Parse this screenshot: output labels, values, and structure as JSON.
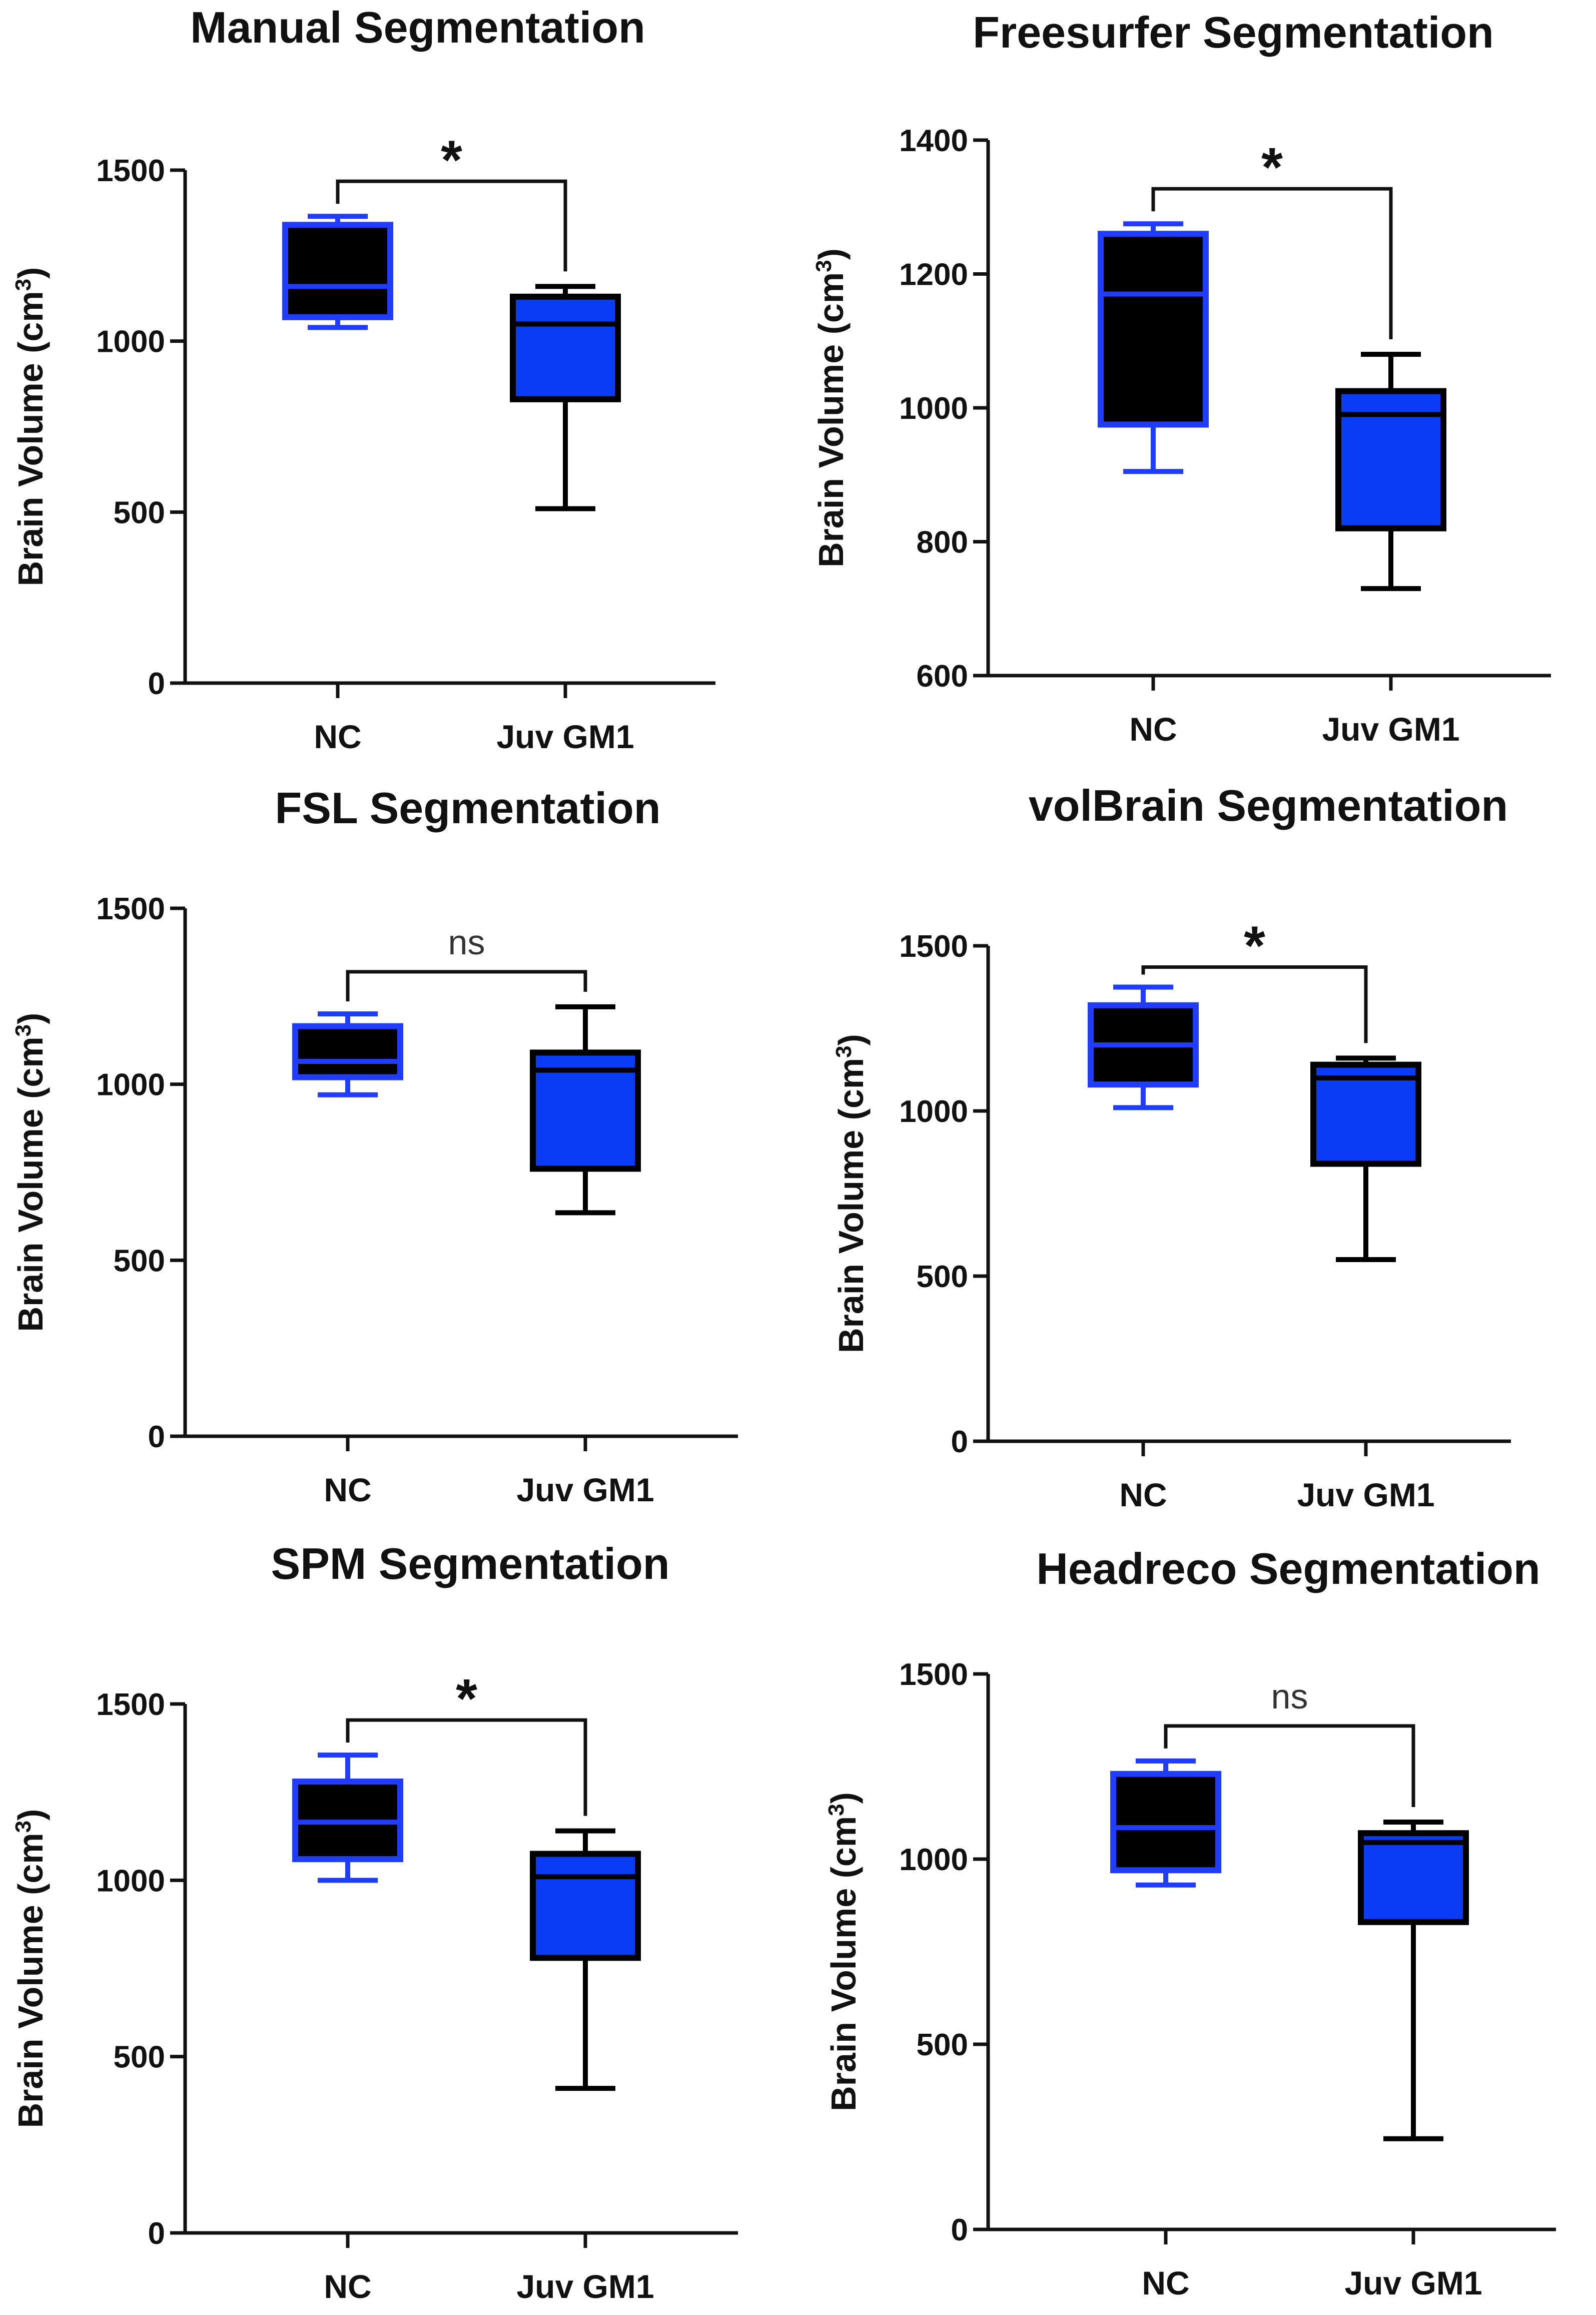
{
  "figure": {
    "colors": {
      "nc_fill": "#000000",
      "nc_stroke": "#1f3cff",
      "gm1_fill": "#0a3cf5",
      "gm1_stroke": "#000000",
      "axis": "#111111"
    }
  },
  "chart_data": [
    {
      "type": "box",
      "title": "Manual Segmentation",
      "ylabel": "Brain Volume (cm³)",
      "ylabel_base": "Brain Volume (cm",
      "ylabel_sup": "3",
      "ylabel_end": ")",
      "ylim": [
        0,
        1500
      ],
      "yticks": [
        0,
        500,
        1000,
        1500
      ],
      "ytick_labels": [
        "0",
        "500",
        "1000",
        "1500"
      ],
      "categories": [
        "NC",
        "Juv GM1"
      ],
      "groups": [
        {
          "name": "NC",
          "whisker_low": 1040,
          "q1": 1070,
          "median": 1160,
          "q3": 1340,
          "whisker_high": 1365
        },
        {
          "name": "Juv GM1",
          "whisker_low": 510,
          "q1": 830,
          "median": 1050,
          "q3": 1130,
          "whisker_high": 1160
        }
      ],
      "significance": "*"
    },
    {
      "type": "box",
      "title": "Freesurfer Segmentation",
      "ylabel": "Brain Volume (cm³)",
      "ylabel_base": "Brain Volume (cm",
      "ylabel_sup": "3",
      "ylabel_end": ")",
      "ylim": [
        600,
        1400
      ],
      "yticks": [
        600,
        800,
        1000,
        1200,
        1400
      ],
      "ytick_labels": [
        "600",
        "800",
        "1000",
        "1200",
        "1400"
      ],
      "categories": [
        "NC",
        "Juv GM1"
      ],
      "groups": [
        {
          "name": "NC",
          "whisker_low": 905,
          "q1": 975,
          "median": 1170,
          "q3": 1260,
          "whisker_high": 1275
        },
        {
          "name": "Juv GM1",
          "whisker_low": 730,
          "q1": 820,
          "median": 990,
          "q3": 1025,
          "whisker_high": 1080
        }
      ],
      "significance": "*"
    },
    {
      "type": "box",
      "title": "FSL Segmentation",
      "ylabel": "Brain Volume (cm³)",
      "ylabel_base": "Brain Volume (cm",
      "ylabel_sup": "3",
      "ylabel_end": ")",
      "ylim": [
        0,
        1500
      ],
      "yticks": [
        0,
        500,
        1000,
        1500
      ],
      "ytick_labels": [
        "0",
        "500",
        "1000",
        "1500"
      ],
      "categories": [
        "NC",
        "Juv GM1"
      ],
      "groups": [
        {
          "name": "NC",
          "whisker_low": 970,
          "q1": 1020,
          "median": 1065,
          "q3": 1165,
          "whisker_high": 1200
        },
        {
          "name": "Juv GM1",
          "whisker_low": 635,
          "q1": 760,
          "median": 1040,
          "q3": 1090,
          "whisker_high": 1220
        }
      ],
      "significance": "ns"
    },
    {
      "type": "box",
      "title": "volBrain Segmentation",
      "ylabel": "Brain Volume (cm³)",
      "ylabel_base": "Brain Volume (cm",
      "ylabel_sup": "3",
      "ylabel_end": ")",
      "ylim": [
        0,
        1500
      ],
      "yticks": [
        0,
        500,
        1000,
        1500
      ],
      "ytick_labels": [
        "0",
        "500",
        "1000",
        "1500"
      ],
      "categories": [
        "NC",
        "Juv GM1"
      ],
      "groups": [
        {
          "name": "NC",
          "whisker_low": 1010,
          "q1": 1080,
          "median": 1200,
          "q3": 1320,
          "whisker_high": 1375
        },
        {
          "name": "Juv GM1",
          "whisker_low": 550,
          "q1": 840,
          "median": 1100,
          "q3": 1140,
          "whisker_high": 1160
        }
      ],
      "significance": "*"
    },
    {
      "type": "box",
      "title": "SPM Segmentation",
      "ylabel": "Brain Volume (cm³)",
      "ylabel_base": "Brain Volume (cm",
      "ylabel_sup": "3",
      "ylabel_end": ")",
      "ylim": [
        0,
        1500
      ],
      "yticks": [
        0,
        500,
        1000,
        1500
      ],
      "ytick_labels": [
        "0",
        "500",
        "1000",
        "1500"
      ],
      "categories": [
        "NC",
        "Juv GM1"
      ],
      "groups": [
        {
          "name": "NC",
          "whisker_low": 1000,
          "q1": 1060,
          "median": 1165,
          "q3": 1280,
          "whisker_high": 1355
        },
        {
          "name": "Juv GM1",
          "whisker_low": 410,
          "q1": 780,
          "median": 1010,
          "q3": 1075,
          "whisker_high": 1140
        }
      ],
      "significance": "*"
    },
    {
      "type": "box",
      "title": "Headreco Segmentation",
      "ylabel": "Brain Volume (cm³)",
      "ylabel_base": "Brain Volume (cm",
      "ylabel_sup": "3",
      "ylabel_end": ")",
      "ylim": [
        0,
        1500
      ],
      "yticks": [
        0,
        500,
        1000,
        1500
      ],
      "ytick_labels": [
        "0",
        "500",
        "1000",
        "1500"
      ],
      "categories": [
        "NC",
        "Juv GM1"
      ],
      "groups": [
        {
          "name": "NC",
          "whisker_low": 930,
          "q1": 970,
          "median": 1085,
          "q3": 1230,
          "whisker_high": 1265
        },
        {
          "name": "Juv GM1",
          "whisker_low": 245,
          "q1": 830,
          "median": 1045,
          "q3": 1070,
          "whisker_high": 1100
        }
      ],
      "significance": "ns"
    }
  ]
}
